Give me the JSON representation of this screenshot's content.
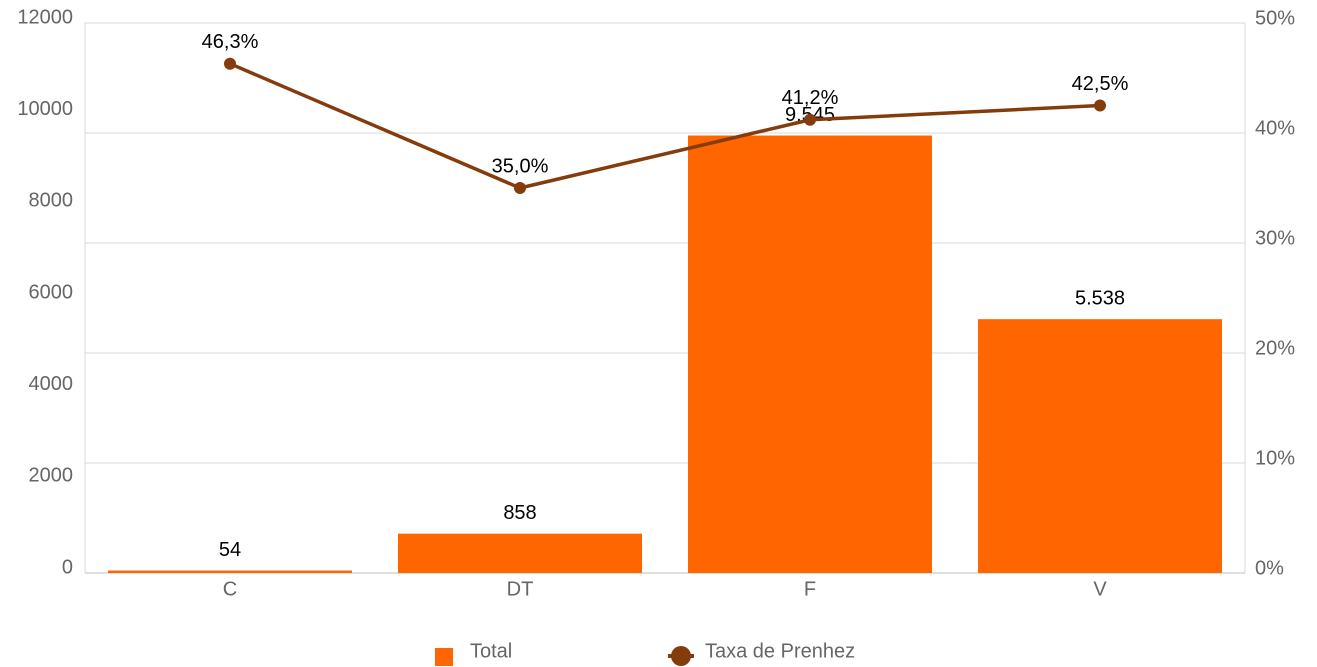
{
  "chart_data": {
    "type": "bar-line",
    "categories": [
      "C",
      "DT",
      "F",
      "V"
    ],
    "series": [
      {
        "name": "Total",
        "type": "bar",
        "color": "#ff6600",
        "values": [
          54,
          858,
          9545,
          5538
        ],
        "value_labels": [
          "54",
          "858",
          "9.545",
          "5.538"
        ]
      },
      {
        "name": "Taxa de Prenhez",
        "type": "line",
        "axis": "y2",
        "color": "#843c0c",
        "values": [
          46.3,
          35.0,
          41.2,
          42.5
        ],
        "value_labels": [
          "46,3%",
          "35,0%",
          "41,2%",
          "42,5%"
        ]
      }
    ],
    "ylim": [
      0,
      12000
    ],
    "yticks": [
      0,
      2000,
      4000,
      6000,
      8000,
      10000,
      12000
    ],
    "y2lim": [
      0,
      50
    ],
    "y2ticks": [
      {
        "value": 0,
        "label": "0%"
      },
      {
        "value": 10,
        "label": "10%"
      },
      {
        "value": 20,
        "label": "20%"
      },
      {
        "value": 30,
        "label": "30%"
      },
      {
        "value": 40,
        "label": "40%"
      },
      {
        "value": 50,
        "label": "50%"
      }
    ],
    "grid": true,
    "legend": "bottom"
  }
}
